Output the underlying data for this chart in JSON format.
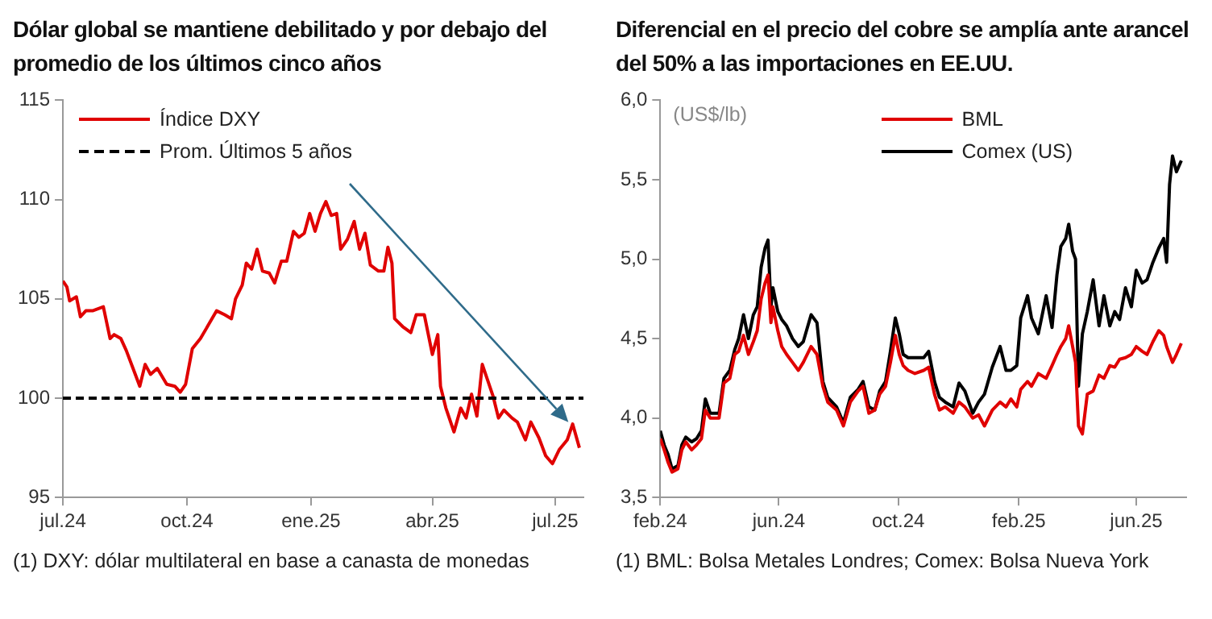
{
  "chart_data": [
    {
      "type": "line",
      "title": "Dólar global se mantiene debilitado y por debajo del promedio de los últimos cinco años",
      "xlim": [
        "2024-07-01",
        "2025-07-22"
      ],
      "xticks": [
        {
          "value": "2024-07-01",
          "label": "jul.24"
        },
        {
          "value": "2024-10-01",
          "label": "oct.24"
        },
        {
          "value": "2025-01-01",
          "label": "ene.25"
        },
        {
          "value": "2025-04-01",
          "label": "abr.25"
        },
        {
          "value": "2025-07-01",
          "label": "jul.25"
        }
      ],
      "ylim": [
        95,
        115
      ],
      "yticks": [
        95,
        100,
        105,
        110,
        115
      ],
      "grid": false,
      "legend": "top left",
      "marker": "none",
      "x": [
        "2024-07-01",
        "2024-07-04",
        "2024-07-06",
        "2024-07-11",
        "2024-07-14",
        "2024-07-18",
        "2024-07-23",
        "2024-07-31",
        "2024-08-05",
        "2024-08-08",
        "2024-08-13",
        "2024-08-17",
        "2024-08-22",
        "2024-08-27",
        "2024-08-31",
        "2024-09-04",
        "2024-09-09",
        "2024-09-16",
        "2024-09-22",
        "2024-09-26",
        "2024-09-30",
        "2024-10-05",
        "2024-10-11",
        "2024-10-17",
        "2024-10-23",
        "2024-10-29",
        "2024-11-03",
        "2024-11-06",
        "2024-11-11",
        "2024-11-14",
        "2024-11-18",
        "2024-11-22",
        "2024-11-26",
        "2024-12-01",
        "2024-12-05",
        "2024-12-10",
        "2024-12-14",
        "2024-12-19",
        "2024-12-23",
        "2024-12-27",
        "2024-12-31",
        "2025-01-04",
        "2025-01-08",
        "2025-01-12",
        "2025-01-16",
        "2025-01-20",
        "2025-01-23",
        "2025-01-28",
        "2025-02-02",
        "2025-02-06",
        "2025-02-10",
        "2025-02-14",
        "2025-02-20",
        "2025-02-24",
        "2025-02-27",
        "2025-03-02",
        "2025-03-04",
        "2025-03-10",
        "2025-03-16",
        "2025-03-20",
        "2025-03-26",
        "2025-04-01",
        "2025-04-05",
        "2025-04-07",
        "2025-04-11",
        "2025-04-17",
        "2025-04-22",
        "2025-04-26",
        "2025-04-30",
        "2025-05-04",
        "2025-05-08",
        "2025-05-12",
        "2025-05-16",
        "2025-05-20",
        "2025-05-24",
        "2025-05-30",
        "2025-06-03",
        "2025-06-09",
        "2025-06-13",
        "2025-06-19",
        "2025-06-24",
        "2025-06-29",
        "2025-07-04",
        "2025-07-10",
        "2025-07-14",
        "2025-07-19"
      ],
      "series": [
        {
          "name": "Índice DXY",
          "color": "#e00000",
          "values": [
            105.9,
            105.6,
            104.9,
            105.1,
            104.1,
            104.4,
            104.4,
            104.6,
            103.0,
            103.2,
            103.0,
            102.4,
            101.5,
            100.6,
            101.7,
            101.2,
            101.5,
            100.7,
            100.6,
            100.3,
            100.7,
            102.5,
            103.0,
            103.7,
            104.4,
            104.2,
            104.0,
            105.0,
            105.7,
            106.8,
            106.5,
            107.5,
            106.4,
            106.3,
            105.8,
            106.9,
            106.9,
            108.4,
            108.1,
            108.3,
            109.3,
            108.4,
            109.3,
            109.9,
            109.2,
            109.3,
            107.5,
            108.0,
            108.9,
            107.5,
            108.3,
            106.7,
            106.4,
            106.4,
            107.6,
            106.8,
            104.0,
            103.6,
            103.3,
            104.2,
            104.2,
            102.2,
            103.2,
            100.6,
            99.5,
            98.3,
            99.5,
            99.0,
            100.2,
            99.1,
            101.7,
            100.9,
            100.1,
            99.0,
            99.4,
            99.0,
            98.8,
            97.9,
            98.8,
            98.0,
            97.1,
            96.7,
            97.4,
            97.9,
            98.7,
            97.5
          ]
        }
      ],
      "ref_lines": [
        {
          "axis": "y",
          "value": 100,
          "label": "Prom. Últimos 5 años",
          "color": "#000000",
          "line_style": "dashed"
        }
      ],
      "annotations": [
        "(1) DXY: dólar multilateral en base a canasta de monedas"
      ]
    },
    {
      "type": "line",
      "title": "Diferencial en el precio del cobre se amplía ante arancel del 50% a las importaciones en EE.UU.",
      "ylabel": "(US$/lb)",
      "xlim": [
        "2024-02-01",
        "2025-07-22"
      ],
      "xticks": [
        {
          "value": "2024-02-01",
          "label": "feb.24"
        },
        {
          "value": "2024-06-01",
          "label": "jun.24"
        },
        {
          "value": "2024-10-01",
          "label": "oct.24"
        },
        {
          "value": "2025-02-01",
          "label": "feb.25"
        },
        {
          "value": "2025-06-01",
          "label": "jun.25"
        }
      ],
      "ylim": [
        3.5,
        6
      ],
      "yticks": [
        {
          "value": 3.5,
          "label": "3,5"
        },
        {
          "value": 4,
          "label": "4,0"
        },
        {
          "value": 4.5,
          "label": "4,5"
        },
        {
          "value": 5,
          "label": "5,0"
        },
        {
          "value": 5.5,
          "label": "5,5"
        },
        {
          "value": 6,
          "label": "6,0"
        }
      ],
      "grid": false,
      "legend": "top",
      "marker": "none",
      "x": [
        "2024-02-01",
        "2024-02-05",
        "2024-02-09",
        "2024-02-13",
        "2024-02-19",
        "2024-02-23",
        "2024-02-27",
        "2024-03-04",
        "2024-03-09",
        "2024-03-14",
        "2024-03-18",
        "2024-03-23",
        "2024-04-01",
        "2024-04-06",
        "2024-04-12",
        "2024-04-17",
        "2024-04-21",
        "2024-04-26",
        "2024-05-01",
        "2024-05-06",
        "2024-05-10",
        "2024-05-14",
        "2024-05-18",
        "2024-05-21",
        "2024-05-24",
        "2024-05-26",
        "2024-05-31",
        "2024-06-04",
        "2024-06-09",
        "2024-06-15",
        "2024-06-21",
        "2024-06-26",
        "2024-07-04",
        "2024-07-10",
        "2024-07-16",
        "2024-07-21",
        "2024-07-30",
        "2024-08-06",
        "2024-08-13",
        "2024-08-21",
        "2024-08-26",
        "2024-09-01",
        "2024-09-07",
        "2024-09-12",
        "2024-09-18",
        "2024-09-23",
        "2024-09-28",
        "2024-10-02",
        "2024-10-06",
        "2024-10-11",
        "2024-10-18",
        "2024-10-27",
        "2024-11-01",
        "2024-11-07",
        "2024-11-12",
        "2024-11-18",
        "2024-11-26",
        "2024-12-02",
        "2024-12-08",
        "2024-12-16",
        "2024-12-22",
        "2024-12-28",
        "2025-01-05",
        "2025-01-13",
        "2025-01-19",
        "2025-01-24",
        "2025-01-30",
        "2025-02-03",
        "2025-02-10",
        "2025-02-14",
        "2025-02-21",
        "2025-03-01",
        "2025-03-07",
        "2025-03-12",
        "2025-03-16",
        "2025-03-21",
        "2025-03-24",
        "2025-03-28",
        "2025-03-31",
        "2025-04-03",
        "2025-04-07",
        "2025-04-12",
        "2025-04-18",
        "2025-04-24",
        "2025-04-29",
        "2025-05-05",
        "2025-05-10",
        "2025-05-15",
        "2025-05-21",
        "2025-05-27",
        "2025-06-01",
        "2025-06-07",
        "2025-06-12",
        "2025-06-18",
        "2025-06-24",
        "2025-06-29",
        "2025-07-02",
        "2025-07-05",
        "2025-07-08",
        "2025-07-12",
        "2025-07-17"
      ],
      "series": [
        {
          "name": "BML",
          "color": "#e00000",
          "values": [
            3.87,
            3.8,
            3.72,
            3.66,
            3.68,
            3.8,
            3.85,
            3.8,
            3.83,
            3.87,
            4.05,
            4.0,
            4.0,
            4.22,
            4.25,
            4.4,
            4.42,
            4.52,
            4.4,
            4.48,
            4.55,
            4.75,
            4.85,
            4.9,
            4.6,
            4.7,
            4.55,
            4.45,
            4.4,
            4.35,
            4.3,
            4.35,
            4.45,
            4.4,
            4.2,
            4.1,
            4.05,
            3.95,
            4.1,
            4.17,
            4.2,
            4.03,
            4.05,
            4.15,
            4.2,
            4.35,
            4.52,
            4.4,
            4.33,
            4.3,
            4.28,
            4.3,
            4.32,
            4.15,
            4.05,
            4.07,
            4.03,
            4.1,
            4.07,
            4.0,
            4.02,
            3.95,
            4.05,
            4.1,
            4.07,
            4.12,
            4.07,
            4.18,
            4.23,
            4.2,
            4.28,
            4.25,
            4.33,
            4.4,
            4.45,
            4.5,
            4.58,
            4.45,
            4.35,
            3.95,
            3.9,
            4.15,
            4.17,
            4.27,
            4.25,
            4.33,
            4.32,
            4.37,
            4.38,
            4.4,
            4.45,
            4.42,
            4.4,
            4.48,
            4.55,
            4.52,
            4.45,
            4.4,
            4.35,
            4.4,
            4.47
          ]
        },
        {
          "name": "Comex (US)",
          "color": "#000000",
          "values": [
            3.92,
            3.83,
            3.77,
            3.68,
            3.7,
            3.83,
            3.88,
            3.85,
            3.87,
            3.92,
            4.12,
            4.03,
            4.03,
            4.25,
            4.3,
            4.43,
            4.5,
            4.65,
            4.5,
            4.65,
            4.7,
            4.95,
            5.07,
            5.12,
            4.7,
            4.82,
            4.67,
            4.62,
            4.58,
            4.5,
            4.45,
            4.48,
            4.65,
            4.6,
            4.23,
            4.13,
            4.07,
            3.97,
            4.13,
            4.18,
            4.23,
            4.07,
            4.05,
            4.17,
            4.23,
            4.42,
            4.63,
            4.53,
            4.4,
            4.38,
            4.38,
            4.38,
            4.42,
            4.23,
            4.13,
            4.1,
            4.07,
            4.22,
            4.17,
            4.03,
            4.1,
            4.15,
            4.32,
            4.45,
            4.3,
            4.3,
            4.33,
            4.63,
            4.77,
            4.63,
            4.53,
            4.77,
            4.57,
            4.9,
            5.08,
            5.13,
            5.22,
            5.05,
            5.0,
            4.2,
            4.53,
            4.67,
            4.87,
            4.58,
            4.77,
            4.58,
            4.67,
            4.62,
            4.82,
            4.7,
            4.93,
            4.85,
            4.87,
            4.98,
            5.07,
            5.13,
            4.98,
            5.47,
            5.65,
            5.55,
            5.62
          ]
        }
      ],
      "annotations": [
        "(1) BML: Bolsa Metales Londres; Comex: Bolsa Nueva York"
      ]
    }
  ]
}
